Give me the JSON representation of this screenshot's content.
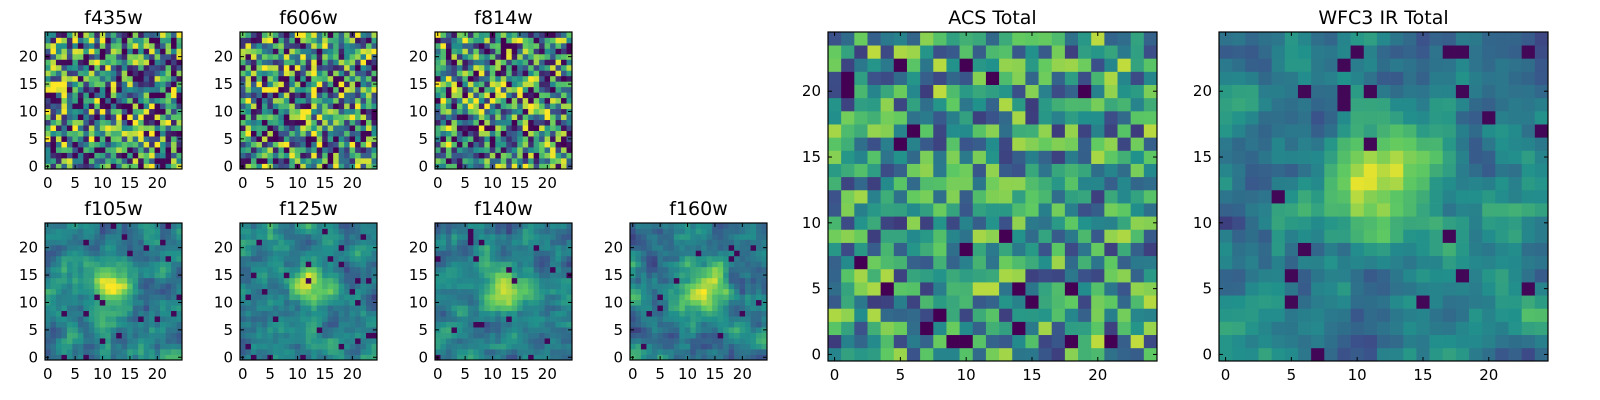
{
  "figure": {
    "grid_size": 25,
    "colormap": "viridis",
    "colormap_stops": [
      "#440154",
      "#3b528b",
      "#21918c",
      "#5ec962",
      "#fde725"
    ]
  },
  "chart_data": [
    {
      "type": "heatmap",
      "title": "f435w",
      "xticks": [
        "0",
        "5",
        "10",
        "15",
        "20"
      ],
      "yticks": [
        "0",
        "5",
        "10",
        "15",
        "20"
      ],
      "xlim": [
        0,
        25
      ],
      "ylim": [
        0,
        25
      ],
      "pattern": "noise"
    },
    {
      "type": "heatmap",
      "title": "f606w",
      "xticks": [
        "0",
        "5",
        "10",
        "15",
        "20"
      ],
      "yticks": [
        "0",
        "5",
        "10",
        "15",
        "20"
      ],
      "xlim": [
        0,
        25
      ],
      "ylim": [
        0,
        25
      ],
      "pattern": "noise"
    },
    {
      "type": "heatmap",
      "title": "f814w",
      "xticks": [
        "0",
        "5",
        "10",
        "15",
        "20"
      ],
      "yticks": [
        "0",
        "5",
        "10",
        "15",
        "20"
      ],
      "xlim": [
        0,
        25
      ],
      "ylim": [
        0,
        25
      ],
      "pattern": "noise"
    },
    {
      "type": "heatmap",
      "title": "f105w",
      "xticks": [
        "0",
        "5",
        "10",
        "15",
        "20"
      ],
      "yticks": [
        "0",
        "5",
        "10",
        "15",
        "20"
      ],
      "xlim": [
        0,
        25
      ],
      "ylim": [
        0,
        25
      ],
      "pattern": "source",
      "source_center": [
        12,
        13
      ]
    },
    {
      "type": "heatmap",
      "title": "f125w",
      "xticks": [
        "0",
        "5",
        "10",
        "15",
        "20"
      ],
      "yticks": [
        "0",
        "5",
        "10",
        "15",
        "20"
      ],
      "xlim": [
        0,
        25
      ],
      "ylim": [
        0,
        25
      ],
      "pattern": "source",
      "source_center": [
        12,
        13
      ]
    },
    {
      "type": "heatmap",
      "title": "f140w",
      "xticks": [
        "0",
        "5",
        "10",
        "15",
        "20"
      ],
      "yticks": [
        "0",
        "5",
        "10",
        "15",
        "20"
      ],
      "xlim": [
        0,
        25
      ],
      "ylim": [
        0,
        25
      ],
      "pattern": "source",
      "source_center": [
        12,
        13
      ]
    },
    {
      "type": "heatmap",
      "title": "f160w",
      "xticks": [
        "0",
        "5",
        "10",
        "15",
        "20"
      ],
      "yticks": [
        "0",
        "5",
        "10",
        "15",
        "20"
      ],
      "xlim": [
        0,
        25
      ],
      "ylim": [
        0,
        25
      ],
      "pattern": "source",
      "source_center": [
        13,
        12
      ]
    },
    {
      "type": "heatmap",
      "title": "ACS Total",
      "xticks": [
        "0",
        "5",
        "10",
        "15",
        "20"
      ],
      "yticks": [
        "0",
        "5",
        "10",
        "15",
        "20"
      ],
      "xlim": [
        0,
        25
      ],
      "ylim": [
        0,
        25
      ],
      "pattern": "noise_bright"
    },
    {
      "type": "heatmap",
      "title": "WFC3 IR Total",
      "xticks": [
        "0",
        "5",
        "10",
        "15",
        "20"
      ],
      "yticks": [
        "0",
        "5",
        "10",
        "15",
        "20"
      ],
      "xlim": [
        0,
        25
      ],
      "ylim": [
        0,
        25
      ],
      "pattern": "source",
      "source_center": [
        12,
        13
      ]
    }
  ]
}
